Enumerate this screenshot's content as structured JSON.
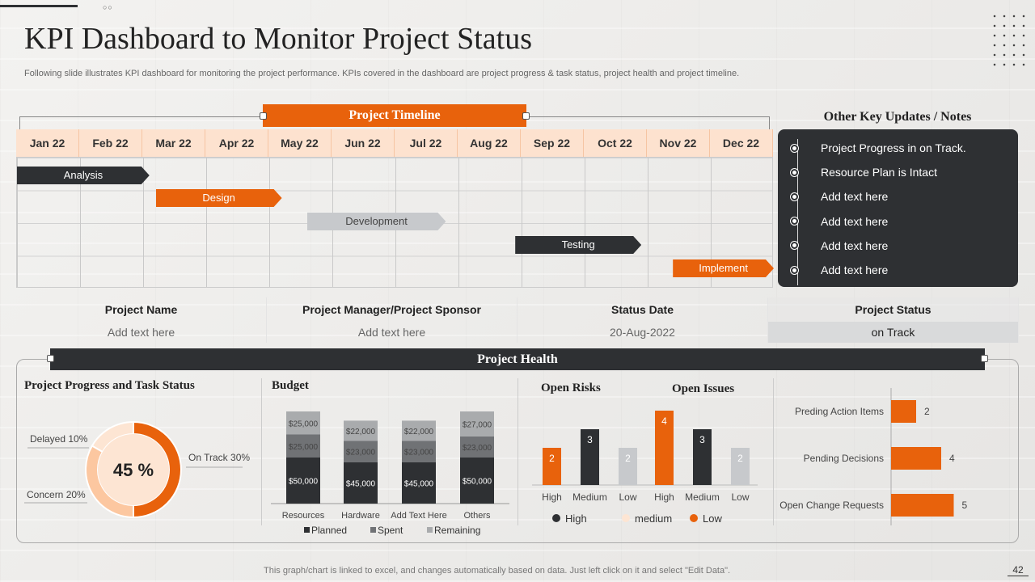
{
  "title": "KPI Dashboard to Monitor Project Status",
  "subtitle": "Following slide illustrates KPI dashboard for monitoring the project performance. KPIs covered in the dashboard are project progress & task status, project health and project timeline.",
  "timeline": {
    "header": "Project Timeline",
    "months": [
      "Jan 22",
      "Feb 22",
      "Mar 22",
      "Apr 22",
      "May 22",
      "Jun 22",
      "Jul 22",
      "Aug  22",
      "Sep 22",
      "Oct 22",
      "Nov 22",
      "Dec 22"
    ],
    "tasks": [
      {
        "label": "Analysis",
        "start_month": 0,
        "end_month": 2.1,
        "style": "dark"
      },
      {
        "label": "Design",
        "start_month": 2.2,
        "end_month": 4.2,
        "style": "orange"
      },
      {
        "label": "Development",
        "start_month": 4.6,
        "end_month": 6.8,
        "style": "grey"
      },
      {
        "label": "Testing",
        "start_month": 7.9,
        "end_month": 9.9,
        "style": "dark"
      },
      {
        "label": "Implement",
        "start_month": 10.4,
        "end_month": 12,
        "style": "orange"
      }
    ]
  },
  "notes": {
    "title": "Other Key Updates / Notes",
    "items": [
      "Project Progress in on Track.",
      "Resource Plan is Intact",
      "Add text here",
      "Add text here",
      "Add text here",
      "Add text here"
    ]
  },
  "info": {
    "project_name_label": "Project Name",
    "project_name_value": "Add text here",
    "manager_label": "Project Manager/Project Sponsor",
    "manager_value": "Add text here",
    "status_date_label": "Status Date",
    "status_date_value": "20-Aug-2022",
    "status_label": "Project Status",
    "status_value": "on Track"
  },
  "health": {
    "header": "Project Health",
    "progress_title": "Project Progress and Task Status",
    "budget_title": "Budget",
    "risks_title": "Open Risks",
    "issues_title": "Open Issues"
  },
  "footer": "This graph/chart is linked to excel,  and changes automatically based on data. Just left click on it and select \"Edit Data\".",
  "page_number": "42",
  "colors": {
    "orange": "#e8620c",
    "dark": "#2e3033",
    "grey": "#c7c9cc",
    "peach": "#fcd5b5",
    "light_grey": "#8a8c8f"
  },
  "chart_data": [
    {
      "type": "pie",
      "name": "Project Progress and Task Status",
      "center_label": "45 %",
      "slices": [
        {
          "label": "On Track 30%",
          "value": 30,
          "color": "#e8620c"
        },
        {
          "label": "Concern 20%",
          "value": 20,
          "color": "#fcc7a0"
        },
        {
          "label": "Delayed 10%",
          "value": 10,
          "color": "#fde5d3"
        }
      ]
    },
    {
      "type": "bar",
      "stacked": true,
      "categories": [
        "Resources",
        "Hardware",
        "Add Text Here",
        "Others"
      ],
      "series": [
        {
          "name": "Planned",
          "values": [
            50000,
            45000,
            45000,
            50000
          ],
          "labels": [
            "$50,000",
            "$45,000",
            "$45,000",
            "$50,000"
          ],
          "color": "#2e3033"
        },
        {
          "name": "Spent",
          "values": [
            25000,
            23000,
            23000,
            23000
          ],
          "labels": [
            "$25,000",
            "$23,000",
            "$23,000",
            "$23,000"
          ],
          "color": "#707275"
        },
        {
          "name": "Remaining",
          "values": [
            25000,
            22000,
            22000,
            27000
          ],
          "labels": [
            "$25,000",
            "$22,000",
            "$22,000",
            "$27,000"
          ],
          "color": "#a9abad"
        }
      ],
      "legend": "bottom"
    },
    {
      "type": "bar",
      "groups": [
        {
          "name": "Open Risks",
          "categories": [
            "High",
            "Medium",
            "Low"
          ],
          "values": [
            2,
            3,
            2
          ]
        },
        {
          "name": "Open Issues",
          "categories": [
            "High",
            "Medium",
            "Low"
          ],
          "values": [
            4,
            3,
            2
          ]
        }
      ],
      "bar_colors": [
        "#e8620c",
        "#2e3033",
        "#c7c9cc"
      ],
      "legend_items": [
        {
          "label": "High",
          "color": "#2e3033"
        },
        {
          "label": "medium",
          "color": "#fde5d3"
        },
        {
          "label": "Low",
          "color": "#e8620c"
        }
      ],
      "ylim": [
        0,
        5
      ]
    },
    {
      "type": "bar",
      "orientation": "horizontal",
      "categories": [
        "Preding Action Items",
        "Pending Decisions",
        "Open Change Requests"
      ],
      "values": [
        2,
        4,
        5
      ],
      "color": "#e8620c",
      "xlim": [
        0,
        6
      ]
    }
  ]
}
